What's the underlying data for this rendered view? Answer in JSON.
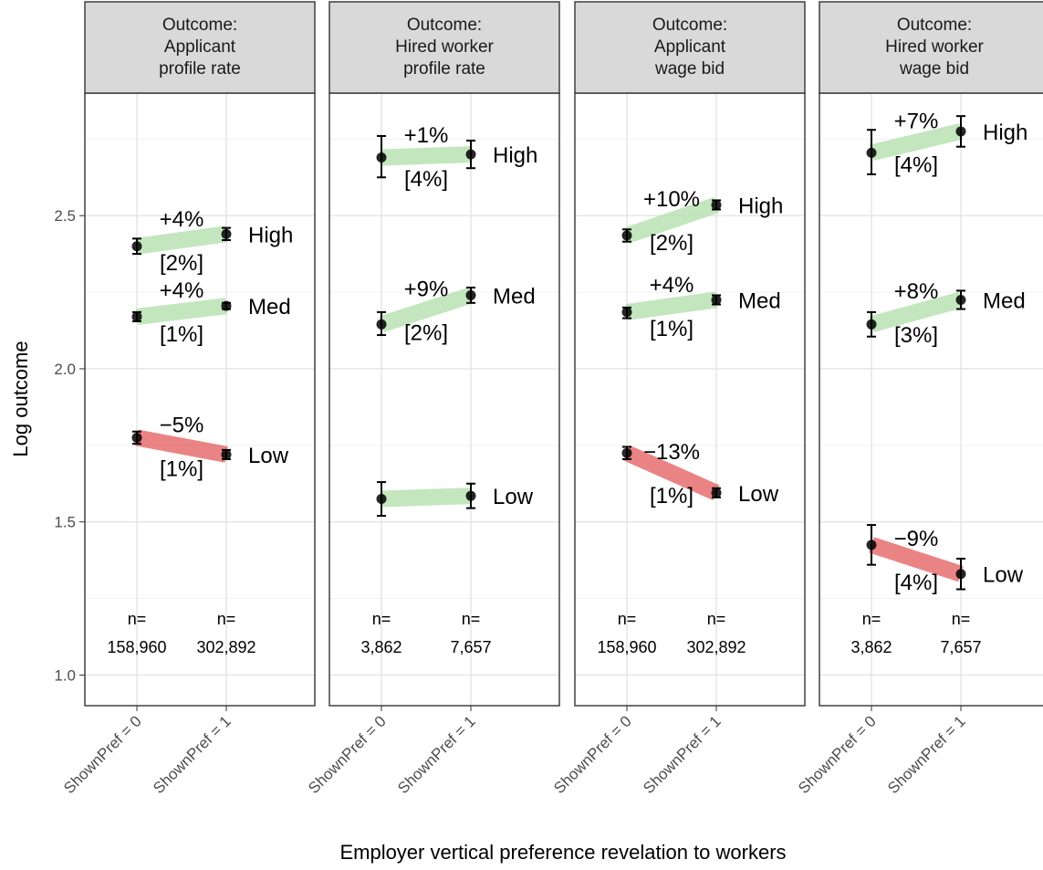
{
  "chart_data": {
    "type": "line",
    "xlabel": "Employer vertical preference revelation to workers",
    "ylabel": "Log outcome",
    "x_categories": [
      "ShownPref = 0",
      "ShownPref = 1"
    ],
    "ylim": [
      0.9,
      2.9
    ],
    "yticks": [
      1.0,
      1.5,
      2.0,
      2.5
    ],
    "ytick_labels": [
      "1.0",
      "1.5",
      "2.0",
      "2.5"
    ],
    "grid": true,
    "colors": {
      "increase": "#b9e2b3",
      "decrease": "#e45b5b",
      "point": "#000000",
      "strip_bg": "#d9d9d9"
    },
    "panels": [
      {
        "strip": [
          "Outcome:",
          "Applicant",
          "profile rate"
        ],
        "n": [
          {
            "prefix": "n=",
            "value": "158,960"
          },
          {
            "prefix": "n=",
            "value": "302,892"
          }
        ],
        "series": [
          {
            "level": "High",
            "y": [
              2.4,
              2.44
            ],
            "err": [
              [
                2.375,
                2.425
              ],
              [
                2.42,
                2.46
              ]
            ],
            "change": "+4%",
            "se": "[2%]"
          },
          {
            "level": "Med",
            "y": [
              2.17,
              2.205
            ],
            "err": [
              [
                2.155,
                2.185
              ],
              [
                2.195,
                2.215
              ]
            ],
            "change": "+4%",
            "se": "[1%]"
          },
          {
            "level": "Low",
            "y": [
              1.775,
              1.72
            ],
            "err": [
              [
                1.755,
                1.795
              ],
              [
                1.705,
                1.735
              ]
            ],
            "change": "−5%",
            "se": "[1%]"
          }
        ]
      },
      {
        "strip": [
          "Outcome:",
          "Hired worker",
          "profile rate"
        ],
        "n": [
          {
            "prefix": "n=",
            "value": "3,862"
          },
          {
            "prefix": "n=",
            "value": "7,657"
          }
        ],
        "series": [
          {
            "level": "High",
            "y": [
              2.69,
              2.7
            ],
            "err": [
              [
                2.625,
                2.76
              ],
              [
                2.655,
                2.745
              ]
            ],
            "change": "+1%",
            "se": "[4%]"
          },
          {
            "level": "Med",
            "y": [
              2.145,
              2.24
            ],
            "err": [
              [
                2.11,
                2.185
              ],
              [
                2.215,
                2.265
              ]
            ],
            "change": "+9%",
            "se": "[2%]"
          },
          {
            "level": "Low",
            "y": [
              1.575,
              1.585
            ],
            "err": [
              [
                1.52,
                1.63
              ],
              [
                1.545,
                1.625
              ]
            ],
            "change": "",
            "se": ""
          }
        ]
      },
      {
        "strip": [
          "Outcome:",
          "Applicant",
          "wage bid"
        ],
        "n": [
          {
            "prefix": "n=",
            "value": "158,960"
          },
          {
            "prefix": "n=",
            "value": "302,892"
          }
        ],
        "series": [
          {
            "level": "High",
            "y": [
              2.435,
              2.535
            ],
            "err": [
              [
                2.415,
                2.455
              ],
              [
                2.52,
                2.55
              ]
            ],
            "change": "+10%",
            "se": "[2%]"
          },
          {
            "level": "Med",
            "y": [
              2.185,
              2.225
            ],
            "err": [
              [
                2.165,
                2.2
              ],
              [
                2.21,
                2.24
              ]
            ],
            "change": "+4%",
            "se": "[1%]"
          },
          {
            "level": "Low",
            "y": [
              1.725,
              1.595
            ],
            "err": [
              [
                1.705,
                1.745
              ],
              [
                1.58,
                1.61
              ]
            ],
            "change": "−13%",
            "se": "[1%]"
          }
        ]
      },
      {
        "strip": [
          "Outcome:",
          "Hired worker",
          "wage bid"
        ],
        "n": [
          {
            "prefix": "n=",
            "value": "3,862"
          },
          {
            "prefix": "n=",
            "value": "7,657"
          }
        ],
        "series": [
          {
            "level": "High",
            "y": [
              2.705,
              2.775
            ],
            "err": [
              [
                2.635,
                2.78
              ],
              [
                2.725,
                2.825
              ]
            ],
            "change": "+7%",
            "se": "[4%]"
          },
          {
            "level": "Med",
            "y": [
              2.145,
              2.225
            ],
            "err": [
              [
                2.105,
                2.185
              ],
              [
                2.195,
                2.255
              ]
            ],
            "change": "+8%",
            "se": "[3%]"
          },
          {
            "level": "Low",
            "y": [
              1.425,
              1.33
            ],
            "err": [
              [
                1.36,
                1.49
              ],
              [
                1.28,
                1.38
              ]
            ],
            "change": "−9%",
            "se": "[4%]"
          }
        ]
      }
    ]
  }
}
